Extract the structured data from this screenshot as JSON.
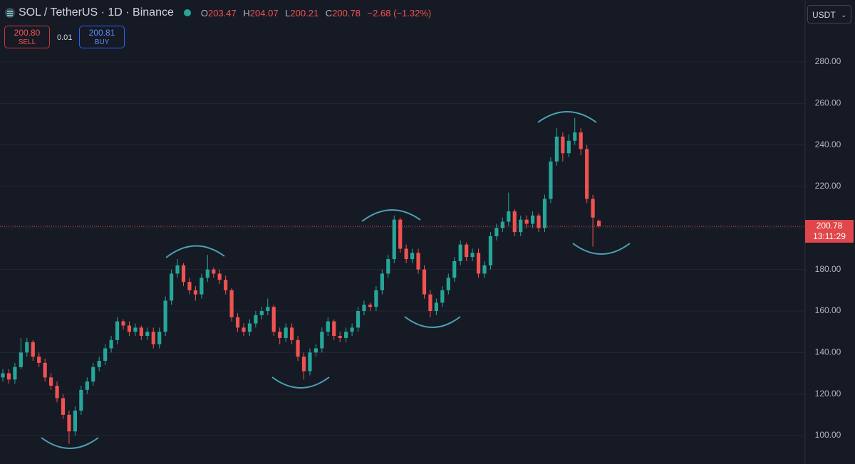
{
  "chart_data": {
    "type": "candlestick",
    "title": "SOL / TetherUS · 1D · Binance",
    "ohlc_labels": [
      "O",
      "H",
      "L",
      "C"
    ],
    "change": "−2.68 (−1.32%)",
    "sell": {
      "value": 200.8,
      "label": "200.80"
    },
    "sell_label": "SELL",
    "spread": 0.01,
    "buy": 200.81,
    "buy_label": "BUY",
    "currency": "USDT",
    "countdown": "13:11:29",
    "up_color": "#26a69a",
    "down_color": "#ef5350",
    "grid": true,
    "ylim": [
      86.3,
      309.8
    ],
    "yticks": [
      {
        "value": 100,
        "label": "100.00"
      },
      {
        "value": 120,
        "label": "120.00"
      },
      {
        "value": 140,
        "label": "140.00"
      },
      {
        "value": 160,
        "label": "160.00"
      },
      {
        "value": 180,
        "label": "180.00"
      },
      {
        "value": 200,
        "label": "200.00"
      },
      {
        "value": 220,
        "label": "220.00"
      },
      {
        "value": 240,
        "label": "240.00"
      },
      {
        "value": 260,
        "label": "260.00"
      },
      {
        "value": 280,
        "label": "280.00"
      }
    ],
    "open": [
      128,
      130,
      127,
      133,
      140,
      145,
      138,
      135,
      128,
      124,
      118,
      110,
      102,
      112,
      122,
      126,
      133,
      136,
      142,
      146,
      155,
      153,
      150,
      152,
      148,
      150,
      144,
      150,
      165,
      178,
      182,
      174,
      170,
      168,
      176,
      180,
      178,
      175,
      170,
      157,
      152,
      150,
      154,
      158,
      160,
      162,
      150,
      147,
      152,
      146,
      138,
      131,
      140,
      142,
      150,
      155,
      148,
      147,
      150,
      152,
      160,
      163,
      162,
      170,
      178,
      185,
      204,
      190,
      185,
      188,
      180,
      168,
      160,
      164,
      170,
      176,
      184,
      192,
      186,
      188,
      178,
      182,
      196,
      200,
      203,
      208,
      198,
      204,
      202,
      206,
      200,
      214,
      232,
      244,
      236,
      242,
      246,
      238,
      214,
      203.47
    ],
    "high": [
      132,
      132,
      135,
      147,
      147,
      146,
      140,
      137,
      130,
      126,
      120,
      112,
      114,
      124,
      128,
      135,
      138,
      144,
      148,
      157,
      156,
      155,
      154,
      153,
      152,
      152,
      152,
      167,
      180,
      185,
      183,
      176,
      172,
      178,
      187,
      181,
      180,
      177,
      171,
      159,
      154,
      156,
      160,
      162,
      166,
      163,
      152,
      154,
      154,
      148,
      140,
      142,
      144,
      152,
      157,
      156,
      150,
      152,
      154,
      162,
      165,
      164,
      172,
      180,
      187,
      206,
      205,
      192,
      190,
      190,
      182,
      170,
      166,
      172,
      178,
      186,
      194,
      193,
      190,
      190,
      184,
      198,
      202,
      205,
      217,
      209,
      206,
      206,
      208,
      207,
      216,
      234,
      248,
      246,
      245,
      253,
      248,
      240,
      216,
      204.07
    ],
    "low": [
      126,
      125,
      125,
      132,
      138,
      136,
      133,
      126,
      122,
      116,
      108,
      96,
      100,
      110,
      120,
      124,
      131,
      134,
      140,
      144,
      151,
      148,
      148,
      146,
      146,
      142,
      142,
      148,
      163,
      176,
      172,
      168,
      165,
      166,
      174,
      176,
      173,
      168,
      155,
      150,
      148,
      148,
      152,
      156,
      158,
      148,
      144,
      145,
      144,
      136,
      127,
      129,
      138,
      140,
      148,
      146,
      145,
      145,
      148,
      150,
      158,
      160,
      160,
      168,
      176,
      183,
      188,
      183,
      183,
      178,
      166,
      157,
      158,
      162,
      168,
      174,
      182,
      184,
      184,
      176,
      176,
      180,
      194,
      198,
      201,
      196,
      196,
      200,
      200,
      198,
      198,
      212,
      230,
      232,
      234,
      240,
      235,
      212,
      191,
      200.21
    ],
    "close": [
      130,
      127,
      133,
      140,
      145,
      138,
      135,
      128,
      124,
      118,
      110,
      102,
      112,
      122,
      126,
      133,
      136,
      142,
      146,
      155,
      153,
      150,
      152,
      148,
      150,
      144,
      150,
      165,
      178,
      182,
      174,
      170,
      168,
      176,
      180,
      178,
      175,
      170,
      157,
      152,
      150,
      154,
      158,
      160,
      162,
      150,
      147,
      152,
      146,
      138,
      131,
      140,
      142,
      150,
      155,
      148,
      147,
      150,
      152,
      160,
      163,
      162,
      170,
      178,
      185,
      204,
      190,
      185,
      188,
      180,
      168,
      160,
      164,
      170,
      176,
      184,
      192,
      186,
      188,
      178,
      182,
      196,
      200,
      203,
      208,
      198,
      204,
      202,
      206,
      200,
      214,
      232,
      244,
      236,
      242,
      246,
      238,
      214,
      205,
      200.78
    ]
  }
}
